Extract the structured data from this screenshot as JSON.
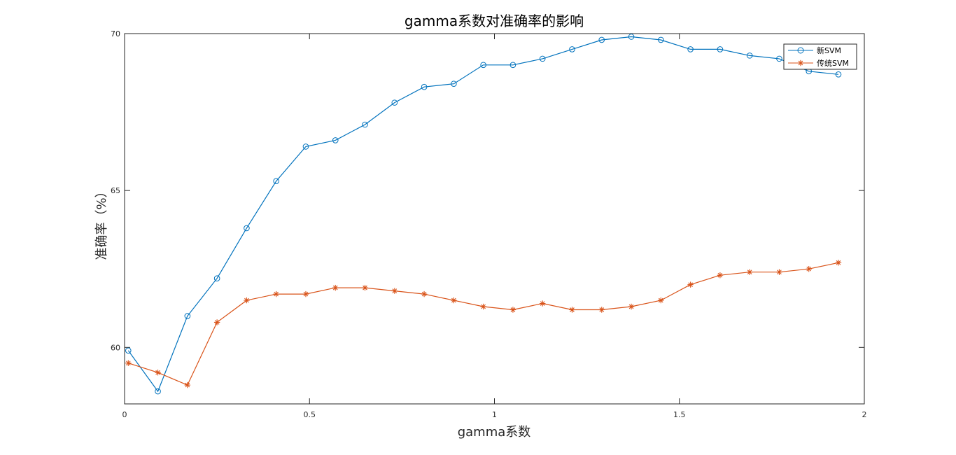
{
  "chart_data": {
    "type": "line",
    "title": "gamma系数对准确率的影响",
    "xlabel": "gamma系数",
    "ylabel": "准确率（%）",
    "xlim": [
      0,
      2
    ],
    "ylim": [
      58.2,
      70
    ],
    "xticks": [
      0,
      0.5,
      1,
      1.5,
      2
    ],
    "xtick_labels": [
      "0",
      "0.5",
      "1",
      "1.5",
      "2"
    ],
    "yticks": [
      60,
      65,
      70
    ],
    "ytick_labels": [
      "60",
      "65",
      "70"
    ],
    "grid": false,
    "legend_position": "top-right",
    "x": [
      0.01,
      0.09,
      0.17,
      0.25,
      0.33,
      0.41,
      0.49,
      0.57,
      0.65,
      0.73,
      0.81,
      0.89,
      0.97,
      1.05,
      1.13,
      1.21,
      1.29,
      1.37,
      1.45,
      1.53,
      1.61,
      1.69,
      1.77,
      1.85,
      1.93
    ],
    "series": [
      {
        "name": "新SVM",
        "color": "#0072BD",
        "marker": "circle",
        "values": [
          59.9,
          58.6,
          61.0,
          62.2,
          63.8,
          65.3,
          66.4,
          66.6,
          67.1,
          67.8,
          68.3,
          68.4,
          69.0,
          69.0,
          69.2,
          69.5,
          69.8,
          69.9,
          69.8,
          69.5,
          69.5,
          69.3,
          69.2,
          68.8,
          68.7
        ]
      },
      {
        "name": "传统SVM",
        "color": "#D95319",
        "marker": "asterisk",
        "values": [
          59.5,
          59.2,
          58.8,
          60.8,
          61.5,
          61.7,
          61.7,
          61.9,
          61.9,
          61.8,
          61.7,
          61.5,
          61.3,
          61.2,
          61.4,
          61.2,
          61.2,
          61.3,
          61.5,
          62.0,
          62.3,
          62.4,
          62.4,
          62.5,
          62.7
        ]
      }
    ]
  }
}
